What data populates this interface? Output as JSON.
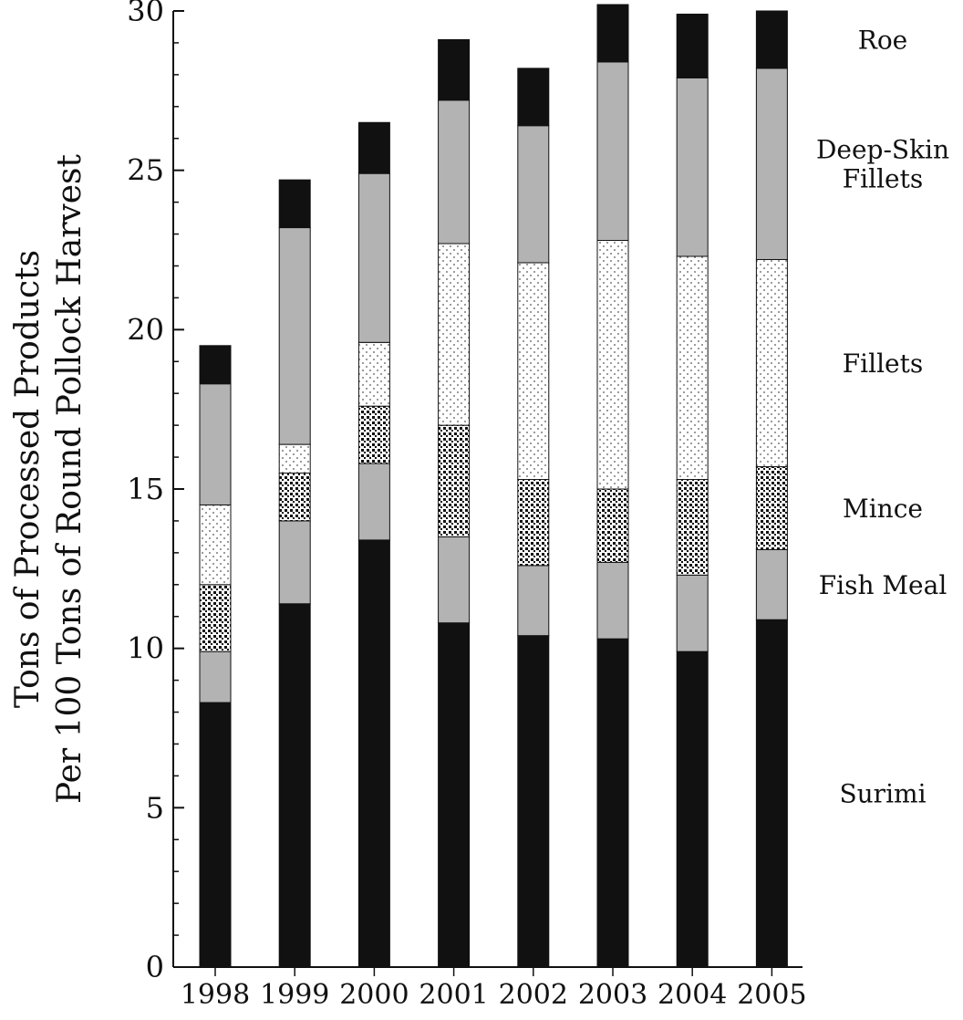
{
  "chart_data": {
    "type": "bar",
    "stacked": true,
    "categories": [
      "1998",
      "1999",
      "2000",
      "2001",
      "2002",
      "2003",
      "2004",
      "2005"
    ],
    "title": "",
    "xlabel": "",
    "ylabel_lines": [
      "Tons of Processed Products",
      "Per 100 Tons of Round Pollock Harvest"
    ],
    "ylim": [
      0,
      30
    ],
    "y_ticks": [
      0,
      5,
      10,
      15,
      20,
      25,
      30
    ],
    "grid": false,
    "legend_placement": "right",
    "series": [
      {
        "key": "surimi",
        "name": "Surimi",
        "legend_lines": [
          "Surimi"
        ],
        "values": [
          8.3,
          11.4,
          13.4,
          10.8,
          10.4,
          10.3,
          9.9,
          10.9
        ],
        "fill": "#111111",
        "pattern": "solid"
      },
      {
        "key": "fish_meal",
        "name": "Fish Meal",
        "legend_lines": [
          "Fish Meal"
        ],
        "values": [
          1.6,
          2.6,
          2.4,
          2.7,
          2.2,
          2.4,
          2.4,
          2.2
        ],
        "fill": "#b3b3b3",
        "pattern": "solid"
      },
      {
        "key": "mince",
        "name": "Mince",
        "legend_lines": [
          "Mince"
        ],
        "values": [
          2.1,
          1.5,
          1.8,
          3.5,
          2.7,
          2.3,
          3.0,
          2.6
        ],
        "fill": "#ffffff",
        "pattern": "dense-dots"
      },
      {
        "key": "fillets",
        "name": "Fillets",
        "legend_lines": [
          "Fillets"
        ],
        "values": [
          2.5,
          0.9,
          2.0,
          5.7,
          6.8,
          7.8,
          7.0,
          6.5
        ],
        "fill": "#ffffff",
        "pattern": "sparse-dots"
      },
      {
        "key": "deep_skin_fillets",
        "name": "Deep-Skin Fillets",
        "legend_lines": [
          "Deep-Skin",
          "Fillets"
        ],
        "values": [
          3.8,
          6.8,
          5.3,
          4.5,
          4.3,
          5.6,
          5.6,
          6.0
        ],
        "fill": "#b3b3b3",
        "pattern": "solid"
      },
      {
        "key": "roe",
        "name": "Roe",
        "legend_lines": [
          "Roe"
        ],
        "values": [
          1.2,
          1.5,
          1.6,
          1.9,
          1.8,
          1.8,
          2.0,
          1.8
        ],
        "fill": "#111111",
        "pattern": "solid"
      }
    ]
  }
}
